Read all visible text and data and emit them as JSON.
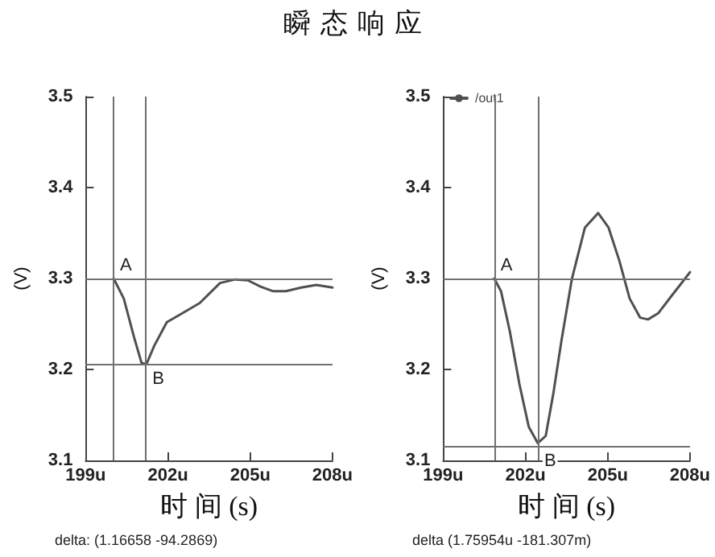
{
  "chart_data": [
    {
      "type": "line",
      "title": "瞬态响应",
      "xlabel": "时 间 (s)",
      "ylabel": "(V)",
      "marker": "none",
      "line_style": "solid",
      "grid": false,
      "legend": false,
      "xlim": [
        199,
        208
      ],
      "xticks": [
        {
          "value": 199,
          "label": "199u"
        },
        {
          "value": 202,
          "label": "202u"
        },
        {
          "value": 205,
          "label": "205u"
        },
        {
          "value": 208,
          "label": "208u"
        }
      ],
      "ylim": [
        3.1,
        3.5
      ],
      "yticks": [
        3.1,
        3.2,
        3.3,
        3.4,
        3.5
      ],
      "series": [
        {
          "color": "#505050",
          "x": [
            200.02,
            200.39,
            200.76,
            201.04,
            201.22,
            201.5,
            201.96,
            202.42,
            203.16,
            203.9,
            204.45,
            204.91,
            205.38,
            205.84,
            206.3,
            206.86,
            207.41,
            208
          ],
          "values": [
            3.3,
            3.278,
            3.236,
            3.207,
            3.206,
            3.226,
            3.252,
            3.26,
            3.273,
            3.295,
            3.299,
            3.298,
            3.291,
            3.286,
            3.286,
            3.29,
            3.293,
            3.29
          ]
        }
      ],
      "ref_lines": [
        {
          "axis": "x",
          "value": 200.02,
          "color": "#707070"
        },
        {
          "axis": "x",
          "value": 201.2,
          "color": "#707070"
        },
        {
          "axis": "y",
          "value": 3.3,
          "color": "#707070"
        },
        {
          "axis": "y",
          "value": 3.205,
          "color": "#707070"
        }
      ],
      "annotations": [
        {
          "text": "A",
          "x": 200.02,
          "y": 3.3
        },
        {
          "text": "B",
          "x": 201.2,
          "y": 3.205
        },
        "delta: (1.16658 -94.2869)"
      ]
    },
    {
      "type": "line",
      "xlabel": "时 间 (s)",
      "ylabel": "(V)",
      "marker": "none",
      "line_style": "solid",
      "grid": false,
      "legend": "top left",
      "xlim": [
        199,
        208
      ],
      "xticks": [
        {
          "value": 199,
          "label": "199u"
        },
        {
          "value": 202,
          "label": "202u"
        },
        {
          "value": 205,
          "label": "205u"
        },
        {
          "value": 208,
          "label": "208u"
        }
      ],
      "ylim": [
        3.1,
        3.5
      ],
      "yticks": [
        3.1,
        3.2,
        3.3,
        3.4,
        3.5
      ],
      "series": [
        {
          "name": "/out1",
          "color": "#505050",
          "x": [
            200.86,
            201.11,
            201.43,
            201.78,
            202.12,
            202.45,
            202.74,
            203.02,
            203.31,
            203.69,
            204.17,
            204.65,
            205.03,
            205.42,
            205.8,
            206.18,
            206.47,
            206.85,
            207.33,
            207.72,
            208
          ],
          "values": [
            3.3,
            3.286,
            3.242,
            3.184,
            3.137,
            3.119,
            3.127,
            3.174,
            3.231,
            3.299,
            3.356,
            3.372,
            3.356,
            3.32,
            3.278,
            3.257,
            3.255,
            3.262,
            3.281,
            3.296,
            3.307
          ]
        }
      ],
      "ref_lines": [
        {
          "axis": "x",
          "value": 200.86,
          "color": "#707070"
        },
        {
          "axis": "x",
          "value": 202.45,
          "color": "#707070"
        },
        {
          "axis": "y",
          "value": 3.3,
          "color": "#707070"
        },
        {
          "axis": "y",
          "value": 3.115,
          "color": "#707070"
        }
      ],
      "annotations": [
        {
          "text": "A",
          "x": 200.86,
          "y": 3.3
        },
        {
          "text": "B",
          "x": 202.45,
          "y": 3.115
        },
        "delta (1.75954u -181.307m)"
      ]
    }
  ]
}
